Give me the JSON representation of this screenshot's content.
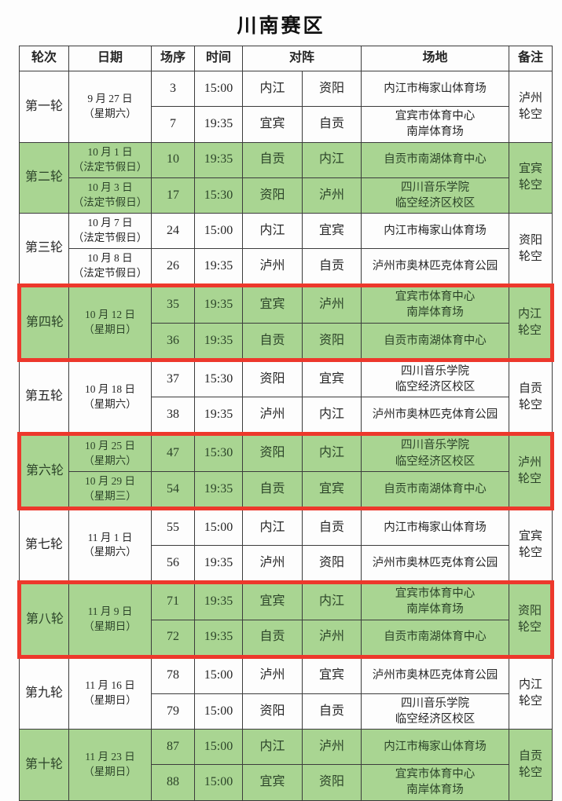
{
  "title": "川南赛区",
  "colors": {
    "row_green": "#a9d592",
    "highlight_red": "#ed382c",
    "grid_line": "#3c3c3c"
  },
  "table": {
    "headers": {
      "round": "轮次",
      "date": "日期",
      "match_no": "场序",
      "time": "时间",
      "matchup": "对阵",
      "venue": "场地",
      "note": "备注"
    },
    "rounds": [
      {
        "name": "第一轮",
        "green": false,
        "highlighted": false,
        "date": "9 月 27 日\n（星期六）",
        "note": "泸州\n轮空",
        "matches": [
          {
            "no": "3",
            "time": "15:00",
            "home": "内江",
            "away": "资阳",
            "venue": "内江市梅家山体育场"
          },
          {
            "no": "7",
            "time": "19:35",
            "home": "宜宾",
            "away": "自贡",
            "venue": "宜宾市体育中心\n南岸体育场"
          }
        ]
      },
      {
        "name": "第二轮",
        "green": true,
        "highlighted": false,
        "note": "宜宾\n轮空",
        "matches": [
          {
            "date": "10 月 1 日\n（法定节假日）",
            "no": "10",
            "time": "19:35",
            "home": "自贡",
            "away": "内江",
            "venue": "自贡市南湖体育中心"
          },
          {
            "date": "10 月 3 日\n（法定节假日）",
            "no": "17",
            "time": "15:30",
            "home": "资阳",
            "away": "泸州",
            "venue": "四川音乐学院\n临空经济区校区"
          }
        ]
      },
      {
        "name": "第三轮",
        "green": false,
        "highlighted": false,
        "note": "资阳\n轮空",
        "matches": [
          {
            "date": "10 月 7 日\n（法定节假日）",
            "no": "24",
            "time": "15:00",
            "home": "内江",
            "away": "宜宾",
            "venue": "内江市梅家山体育场"
          },
          {
            "date": "10 月 8 日\n（法定节假日）",
            "no": "26",
            "time": "19:35",
            "home": "泸州",
            "away": "自贡",
            "venue": "泸州市奥林匹克体育公园"
          }
        ]
      },
      {
        "name": "第四轮",
        "green": true,
        "highlighted": true,
        "date": "10 月 12 日\n（星期日）",
        "note": "内江\n轮空",
        "matches": [
          {
            "no": "35",
            "time": "19:35",
            "home": "宜宾",
            "away": "泸州",
            "venue": "宜宾市体育中心\n南岸体育场"
          },
          {
            "no": "36",
            "time": "19:35",
            "home": "自贡",
            "away": "资阳",
            "venue": "自贡市南湖体育中心"
          }
        ]
      },
      {
        "name": "第五轮",
        "green": false,
        "highlighted": false,
        "date": "10 月 18 日\n（星期六）",
        "note": "自贡\n轮空",
        "matches": [
          {
            "no": "37",
            "time": "15:30",
            "home": "资阳",
            "away": "宜宾",
            "venue": "四川音乐学院\n临空经济区校区"
          },
          {
            "no": "38",
            "time": "19:35",
            "home": "泸州",
            "away": "内江",
            "venue": "泸州市奥林匹克体育公园"
          }
        ]
      },
      {
        "name": "第六轮",
        "green": true,
        "highlighted": true,
        "note": "泸州\n轮空",
        "matches": [
          {
            "date": "10 月 25 日\n（星期六）",
            "no": "47",
            "time": "15:30",
            "home": "资阳",
            "away": "内江",
            "venue": "四川音乐学院\n临空经济区校区"
          },
          {
            "date": "10 月 29 日\n（星期三）",
            "no": "54",
            "time": "19:35",
            "home": "自贡",
            "away": "宜宾",
            "venue": "自贡市南湖体育中心"
          }
        ]
      },
      {
        "name": "第七轮",
        "green": false,
        "highlighted": false,
        "date": "11 月 1 日\n（星期六）",
        "note": "宜宾\n轮空",
        "matches": [
          {
            "no": "55",
            "time": "15:00",
            "home": "内江",
            "away": "自贡",
            "venue": "内江市梅家山体育场"
          },
          {
            "no": "56",
            "time": "19:35",
            "home": "泸州",
            "away": "资阳",
            "venue": "泸州市奥林匹克体育公园"
          }
        ]
      },
      {
        "name": "第八轮",
        "green": true,
        "highlighted": true,
        "date": "11 月 9 日\n（星期日）",
        "note": "资阳\n轮空",
        "matches": [
          {
            "no": "71",
            "time": "19:35",
            "home": "宜宾",
            "away": "内江",
            "venue": "宜宾市体育中心\n南岸体育场"
          },
          {
            "no": "72",
            "time": "19:35",
            "home": "自贡",
            "away": "泸州",
            "venue": "自贡市南湖体育中心"
          }
        ]
      },
      {
        "name": "第九轮",
        "green": false,
        "highlighted": false,
        "date": "11 月 16 日\n（星期日）",
        "note": "内江\n轮空",
        "matches": [
          {
            "no": "78",
            "time": "15:00",
            "home": "泸州",
            "away": "宜宾",
            "venue": "泸州市奥林匹克体育公园"
          },
          {
            "no": "79",
            "time": "15:00",
            "home": "资阳",
            "away": "自贡",
            "venue": "四川音乐学院\n临空经济区校区"
          }
        ]
      },
      {
        "name": "第十轮",
        "green": true,
        "highlighted": false,
        "date": "11 月 23 日\n（星期日）",
        "note": "自贡\n轮空",
        "matches": [
          {
            "no": "87",
            "time": "15:00",
            "home": "内江",
            "away": "泸州",
            "venue": "内江市梅家山体育场"
          },
          {
            "no": "88",
            "time": "15:00",
            "home": "宜宾",
            "away": "资阳",
            "venue": "宜宾市体育中心\n南岸体育场"
          }
        ]
      }
    ]
  }
}
